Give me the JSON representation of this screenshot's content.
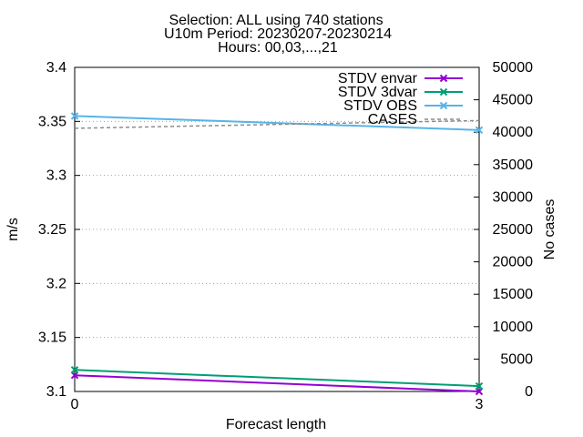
{
  "chart_data": {
    "type": "line",
    "title_lines": [
      "Selection: ALL using   740 stations",
      "U10m   Period: 20230207-20230214",
      "Hours: 00,03,...,21"
    ],
    "xlabel": "Forecast length",
    "ylabel": "m/s",
    "y2label": "No cases",
    "x": [
      0,
      3
    ],
    "xticks": [
      "0",
      "3"
    ],
    "xlim": [
      0,
      3
    ],
    "ylim": [
      3.1,
      3.4
    ],
    "yticks": [
      "3.1",
      "3.15",
      "3.2",
      "3.25",
      "3.3",
      "3.35",
      "3.4"
    ],
    "y2lim": [
      0,
      50000
    ],
    "y2ticks": [
      "0",
      "5000",
      "10000",
      "15000",
      "20000",
      "25000",
      "30000",
      "35000",
      "40000",
      "45000",
      "50000"
    ],
    "grid": "horizontal dotted",
    "legend_position": "top-right",
    "series": [
      {
        "name": "STDV envar",
        "axis": "y",
        "color": "#9400d3",
        "marker": "x",
        "values": [
          3.115,
          3.1
        ]
      },
      {
        "name": "STDV 3dvar",
        "axis": "y",
        "color": "#009e73",
        "marker": "x",
        "values": [
          3.12,
          3.105
        ]
      },
      {
        "name": "STDV OBS",
        "axis": "y",
        "color": "#56b4e9",
        "marker": "x",
        "values": [
          3.355,
          3.342
        ]
      },
      {
        "name": "CASES",
        "axis": "y2",
        "color": "#8c8c8c",
        "dash": true,
        "values": [
          40600,
          41800
        ]
      }
    ]
  }
}
